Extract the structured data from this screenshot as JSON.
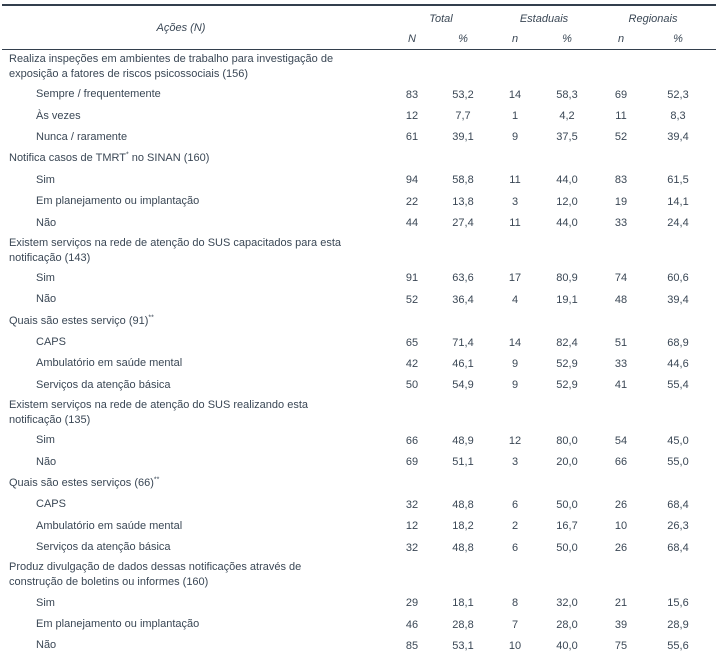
{
  "header": {
    "actions_label": "Ações (N)",
    "groups": [
      {
        "label": "Total",
        "cols": [
          "N",
          "%"
        ]
      },
      {
        "label": "Estaduais",
        "cols": [
          "n",
          "%"
        ]
      },
      {
        "label": "Regionais",
        "cols": [
          "n",
          "%"
        ]
      }
    ]
  },
  "rows": [
    {
      "type": "section",
      "text": "Realiza inspeções em ambientes de trabalho para investigação de\nexposição a fatores de riscos psicossociais (156)"
    },
    {
      "type": "item",
      "text": "Sempre / frequentemente",
      "values": [
        "83",
        "53,2",
        "14",
        "58,3",
        "69",
        "52,3"
      ]
    },
    {
      "type": "item",
      "text": "Às vezes",
      "values": [
        "12",
        "7,7",
        "1",
        "4,2",
        "11",
        "8,3"
      ]
    },
    {
      "type": "item",
      "text": "Nunca / raramente",
      "values": [
        "61",
        "39,1",
        "9",
        "37,5",
        "52",
        "39,4"
      ]
    },
    {
      "type": "section",
      "text": "Notifica casos de TMRT",
      "sup": "*",
      "text_after": " no SINAN (160)"
    },
    {
      "type": "item",
      "text": "Sim",
      "values": [
        "94",
        "58,8",
        "11",
        "44,0",
        "83",
        "61,5"
      ]
    },
    {
      "type": "item",
      "text": "Em planejamento ou implantação",
      "values": [
        "22",
        "13,8",
        "3",
        "12,0",
        "19",
        "14,1"
      ]
    },
    {
      "type": "item",
      "text": "Não",
      "values": [
        "44",
        "27,4",
        "11",
        "44,0",
        "33",
        "24,4"
      ]
    },
    {
      "type": "section",
      "text": "Existem serviços na rede de atenção do SUS capacitados para esta\nnotificação (143)"
    },
    {
      "type": "item",
      "text": "Sim",
      "values": [
        "91",
        "63,6",
        "17",
        "80,9",
        "74",
        "60,6"
      ]
    },
    {
      "type": "item",
      "text": "Não",
      "values": [
        "52",
        "36,4",
        "4",
        "19,1",
        "48",
        "39,4"
      ]
    },
    {
      "type": "section",
      "text": "Quais são estes serviço (91)",
      "sup": "**"
    },
    {
      "type": "item",
      "text": "CAPS",
      "values": [
        "65",
        "71,4",
        "14",
        "82,4",
        "51",
        "68,9"
      ]
    },
    {
      "type": "item",
      "text": "Ambulatório em saúde mental",
      "values": [
        "42",
        "46,1",
        "9",
        "52,9",
        "33",
        "44,6"
      ]
    },
    {
      "type": "item",
      "text": "Serviços da atenção básica",
      "values": [
        "50",
        "54,9",
        "9",
        "52,9",
        "41",
        "55,4"
      ]
    },
    {
      "type": "section",
      "text": "Existem serviços na rede de atenção do SUS realizando esta\nnotificação (135)"
    },
    {
      "type": "item",
      "text": "Sim",
      "values": [
        "66",
        "48,9",
        "12",
        "80,0",
        "54",
        "45,0"
      ]
    },
    {
      "type": "item",
      "text": "Não",
      "values": [
        "69",
        "51,1",
        "3",
        "20,0",
        "66",
        "55,0"
      ]
    },
    {
      "type": "section",
      "text": "Quais são estes serviços (66)",
      "sup": "**"
    },
    {
      "type": "item",
      "text": "CAPS",
      "values": [
        "32",
        "48,8",
        "6",
        "50,0",
        "26",
        "68,4"
      ]
    },
    {
      "type": "item",
      "text": "Ambulatório em saúde mental",
      "values": [
        "12",
        "18,2",
        "2",
        "16,7",
        "10",
        "26,3"
      ]
    },
    {
      "type": "item",
      "text": "Serviços da atenção básica",
      "values": [
        "32",
        "48,8",
        "6",
        "50,0",
        "26",
        "68,4"
      ]
    },
    {
      "type": "section",
      "text": "Produz divulgação de dados dessas notificações através de\nconstrução de boletins ou informes (160)"
    },
    {
      "type": "item",
      "text": "Sim",
      "values": [
        "29",
        "18,1",
        "8",
        "32,0",
        "21",
        "15,6"
      ]
    },
    {
      "type": "item",
      "text": "Em planejamento ou implantação",
      "values": [
        "46",
        "28,8",
        "7",
        "28,0",
        "39",
        "28,9"
      ]
    },
    {
      "type": "item",
      "text": "Não",
      "values": [
        "85",
        "53,1",
        "10",
        "40,0",
        "75",
        "55,6"
      ]
    }
  ],
  "colors": {
    "text": "#3a4755",
    "border": "#333f4d",
    "background": "#ffffff"
  }
}
